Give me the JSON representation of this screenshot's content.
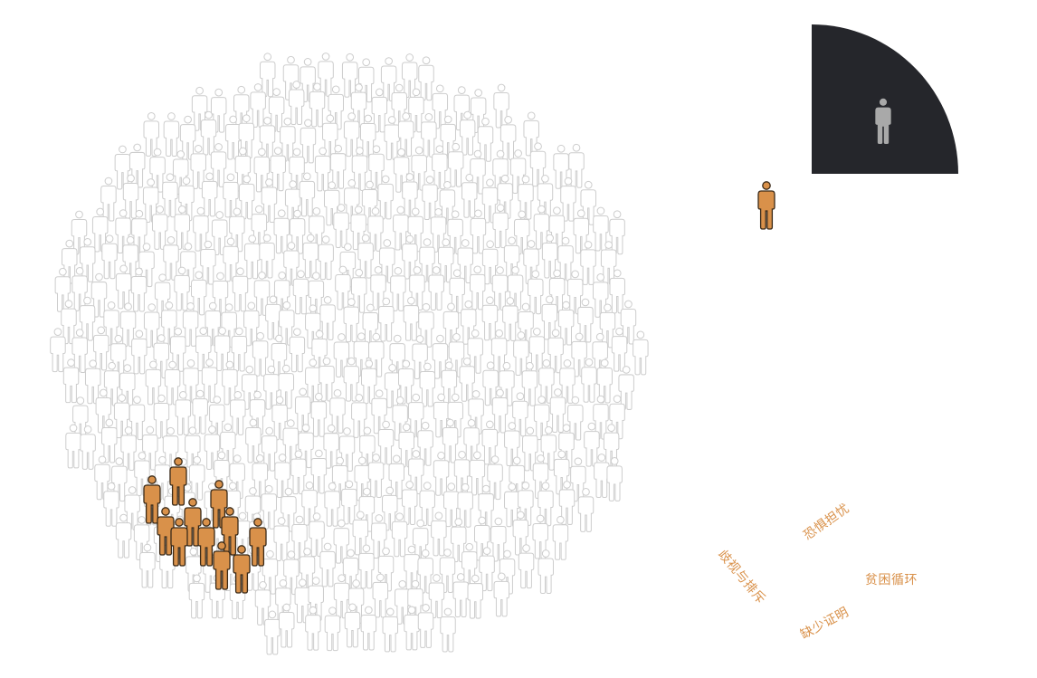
{
  "colors": {
    "crowd_outline": "#cdcdcd",
    "highlight_fill": "#d9914a",
    "highlight_stroke": "#3a2a18",
    "panel_background": "#25262b",
    "panel_person": "#a9a9a9",
    "label_text": "#d9914a"
  },
  "icons": {
    "crowd_person": "person-outline-icon",
    "highlight_person": "person-icon",
    "panel_person": "person-icon"
  },
  "labels": {
    "discrimination": "歧视与排斥",
    "fear": "恐惧担忧",
    "poverty": "贫困循环",
    "lack_of_proof": "缺少证明"
  }
}
